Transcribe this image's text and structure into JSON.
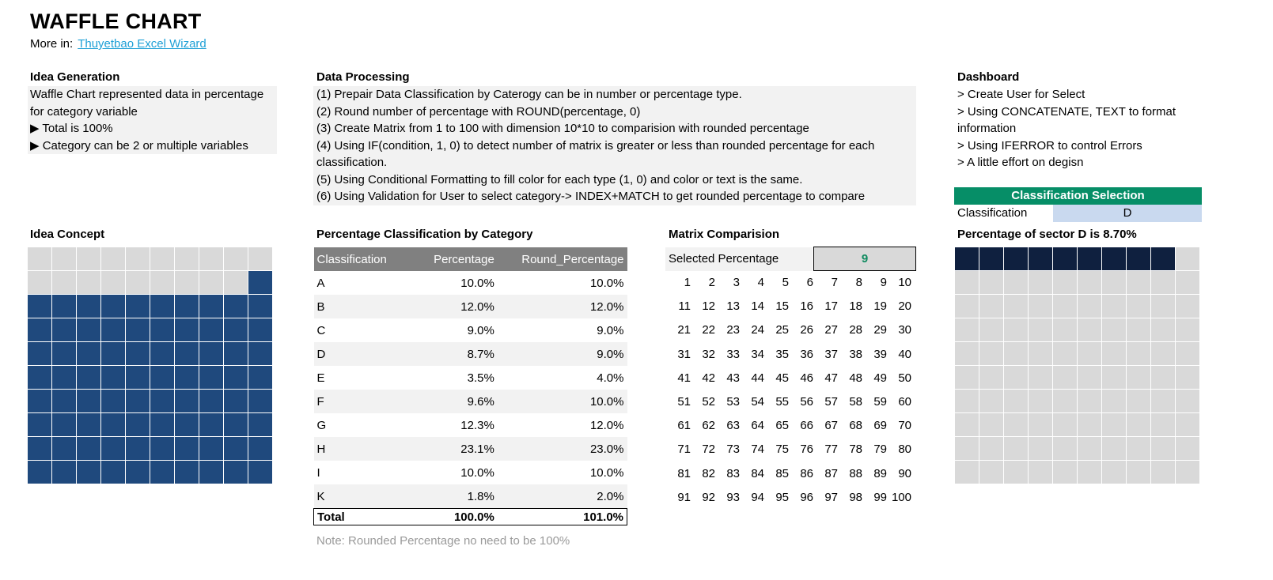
{
  "header": {
    "title": "WAFFLE CHART",
    "more_label": "More in:",
    "more_link": "Thuyetbao Excel Wizard"
  },
  "idea_generation": {
    "title": "Idea Generation",
    "lines": [
      "Waffle Chart represented data in percentage",
      "for category variable",
      "▶ Total is 100%",
      "▶ Category can be 2 or multiple variables"
    ]
  },
  "data_processing": {
    "title": "Data Processing",
    "lines": [
      "(1) Prepair Data Classification by Caterogy can be in number or percentage type.",
      "(2) Round number of percentage with ROUND(percentage, 0)",
      "(3) Create Matrix from 1 to 100 with dimension 10*10 to comparision with rounded percentage",
      "(4) Using IF(condition, 1, 0) to detect number of matrix is greater or less than rounded percentage for each",
      "classification.",
      "(5) Using Conditional Formatting to fill color for each type (1, 0) and color or text is the same.",
      "(6) Using Validation for User to select category-> INDEX+MATCH to get rounded percentage to compare"
    ]
  },
  "dashboard": {
    "title": "Dashboard",
    "lines": [
      "> Create User for Select",
      "> Using CONCATENATE, TEXT to format",
      "information",
      ">  Using IFERROR to control Errors",
      ">  A little effort on degisn"
    ]
  },
  "classification_selection": {
    "header": "Classification Selection",
    "label": "Classification",
    "value": "D"
  },
  "idea_concept": {
    "title": "Idea Concept",
    "filled_cells": 81,
    "fill_color": "#1f497d",
    "empty_color": "#d9d9d9"
  },
  "percentage_table": {
    "title": "Percentage Classification by Category",
    "columns": [
      "Classification",
      "Percentage",
      "Round_Percentage"
    ],
    "rows": [
      [
        "A",
        "10.0%",
        "10.0%"
      ],
      [
        "B",
        "12.0%",
        "12.0%"
      ],
      [
        "C",
        "9.0%",
        "9.0%"
      ],
      [
        "D",
        "8.7%",
        "9.0%"
      ],
      [
        "E",
        "3.5%",
        "4.0%"
      ],
      [
        "F",
        "9.6%",
        "10.0%"
      ],
      [
        "G",
        "12.3%",
        "12.0%"
      ],
      [
        "H",
        "23.1%",
        "23.0%"
      ],
      [
        "I",
        "10.0%",
        "10.0%"
      ],
      [
        "K",
        "1.8%",
        "2.0%"
      ]
    ],
    "total": [
      "Total",
      "100.0%",
      "101.0%"
    ],
    "note": "Note: Rounded Percentage no need to be 100%"
  },
  "matrix": {
    "title": "Matrix Comparision",
    "selected_label": "Selected Percentage",
    "selected_value": "9"
  },
  "sector_chart": {
    "title": "Percentage of sector D is 8.70%",
    "filled_cells": 9,
    "fill_color": "#0f203f",
    "empty_color": "#d9d9d9"
  }
}
